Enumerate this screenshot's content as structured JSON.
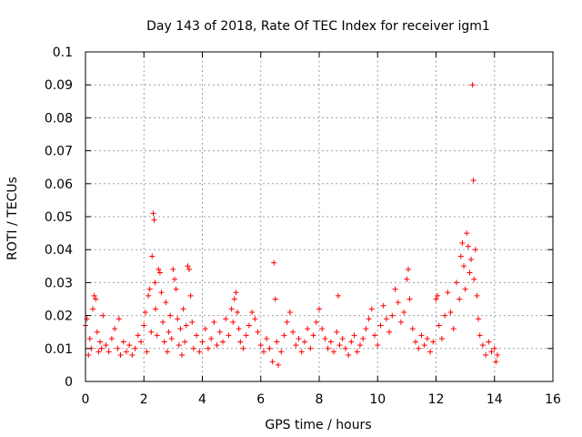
{
  "chart_data": {
    "type": "scatter",
    "title": "Day 143 of 2018, Rate Of TEC Index for receiver igm1",
    "xlabel": "GPS time / hours",
    "ylabel": "ROTI / TECUs",
    "xlim": [
      0,
      16
    ],
    "ylim": [
      0,
      0.1
    ],
    "grid": true,
    "marker": "plus",
    "color": "#ff0000",
    "x_ticks": [
      "0",
      "2",
      "4",
      "6",
      "8",
      "10",
      "12",
      "14",
      "16"
    ],
    "y_ticks": [
      "0",
      "0.01",
      "0.02",
      "0.03",
      "0.04",
      "0.05",
      "0.06",
      "0.07",
      "0.08",
      "0.09",
      "0.1"
    ],
    "series": [
      {
        "name": "ROTI",
        "points": [
          [
            0.0,
            0.017
          ],
          [
            0.05,
            0.019
          ],
          [
            0.1,
            0.008
          ],
          [
            0.15,
            0.013
          ],
          [
            0.2,
            0.01
          ],
          [
            0.25,
            0.022
          ],
          [
            0.3,
            0.026
          ],
          [
            0.35,
            0.025
          ],
          [
            0.4,
            0.015
          ],
          [
            0.45,
            0.009
          ],
          [
            0.5,
            0.012
          ],
          [
            0.55,
            0.01
          ],
          [
            0.6,
            0.02
          ],
          [
            0.7,
            0.011
          ],
          [
            0.8,
            0.009
          ],
          [
            0.9,
            0.013
          ],
          [
            1.0,
            0.016
          ],
          [
            1.1,
            0.01
          ],
          [
            1.15,
            0.019
          ],
          [
            1.2,
            0.008
          ],
          [
            1.3,
            0.012
          ],
          [
            1.4,
            0.009
          ],
          [
            1.5,
            0.011
          ],
          [
            1.6,
            0.008
          ],
          [
            1.7,
            0.01
          ],
          [
            1.8,
            0.014
          ],
          [
            1.9,
            0.012
          ],
          [
            2.0,
            0.017
          ],
          [
            2.05,
            0.021
          ],
          [
            2.1,
            0.009
          ],
          [
            2.15,
            0.026
          ],
          [
            2.2,
            0.028
          ],
          [
            2.25,
            0.015
          ],
          [
            2.28,
            0.038
          ],
          [
            2.32,
            0.051
          ],
          [
            2.35,
            0.049
          ],
          [
            2.38,
            0.03
          ],
          [
            2.4,
            0.022
          ],
          [
            2.45,
            0.014
          ],
          [
            2.5,
            0.034
          ],
          [
            2.55,
            0.033
          ],
          [
            2.6,
            0.027
          ],
          [
            2.65,
            0.018
          ],
          [
            2.7,
            0.012
          ],
          [
            2.75,
            0.024
          ],
          [
            2.8,
            0.009
          ],
          [
            2.85,
            0.015
          ],
          [
            2.9,
            0.02
          ],
          [
            2.95,
            0.013
          ],
          [
            3.0,
            0.034
          ],
          [
            3.05,
            0.031
          ],
          [
            3.1,
            0.028
          ],
          [
            3.15,
            0.019
          ],
          [
            3.2,
            0.011
          ],
          [
            3.25,
            0.016
          ],
          [
            3.3,
            0.008
          ],
          [
            3.35,
            0.022
          ],
          [
            3.4,
            0.012
          ],
          [
            3.45,
            0.017
          ],
          [
            3.5,
            0.035
          ],
          [
            3.55,
            0.034
          ],
          [
            3.6,
            0.026
          ],
          [
            3.65,
            0.018
          ],
          [
            3.7,
            0.01
          ],
          [
            3.8,
            0.014
          ],
          [
            3.9,
            0.009
          ],
          [
            4.0,
            0.012
          ],
          [
            4.1,
            0.016
          ],
          [
            4.2,
            0.01
          ],
          [
            4.3,
            0.013
          ],
          [
            4.4,
            0.018
          ],
          [
            4.5,
            0.011
          ],
          [
            4.6,
            0.015
          ],
          [
            4.7,
            0.012
          ],
          [
            4.8,
            0.019
          ],
          [
            4.9,
            0.014
          ],
          [
            5.0,
            0.022
          ],
          [
            5.05,
            0.018
          ],
          [
            5.1,
            0.025
          ],
          [
            5.15,
            0.027
          ],
          [
            5.2,
            0.021
          ],
          [
            5.25,
            0.016
          ],
          [
            5.3,
            0.012
          ],
          [
            5.4,
            0.01
          ],
          [
            5.5,
            0.014
          ],
          [
            5.6,
            0.017
          ],
          [
            5.7,
            0.021
          ],
          [
            5.8,
            0.019
          ],
          [
            5.9,
            0.015
          ],
          [
            6.0,
            0.011
          ],
          [
            6.1,
            0.009
          ],
          [
            6.2,
            0.013
          ],
          [
            6.3,
            0.01
          ],
          [
            6.4,
            0.006
          ],
          [
            6.45,
            0.036
          ],
          [
            6.5,
            0.025
          ],
          [
            6.55,
            0.012
          ],
          [
            6.6,
            0.005
          ],
          [
            6.7,
            0.009
          ],
          [
            6.8,
            0.014
          ],
          [
            6.9,
            0.018
          ],
          [
            7.0,
            0.021
          ],
          [
            7.1,
            0.015
          ],
          [
            7.2,
            0.011
          ],
          [
            7.3,
            0.013
          ],
          [
            7.4,
            0.009
          ],
          [
            7.5,
            0.012
          ],
          [
            7.6,
            0.016
          ],
          [
            7.7,
            0.01
          ],
          [
            7.8,
            0.014
          ],
          [
            7.9,
            0.018
          ],
          [
            8.0,
            0.022
          ],
          [
            8.1,
            0.016
          ],
          [
            8.2,
            0.013
          ],
          [
            8.3,
            0.01
          ],
          [
            8.4,
            0.012
          ],
          [
            8.5,
            0.009
          ],
          [
            8.6,
            0.015
          ],
          [
            8.65,
            0.026
          ],
          [
            8.7,
            0.011
          ],
          [
            8.8,
            0.013
          ],
          [
            8.9,
            0.01
          ],
          [
            9.0,
            0.008
          ],
          [
            9.1,
            0.012
          ],
          [
            9.2,
            0.014
          ],
          [
            9.3,
            0.009
          ],
          [
            9.4,
            0.011
          ],
          [
            9.5,
            0.013
          ],
          [
            9.6,
            0.016
          ],
          [
            9.7,
            0.019
          ],
          [
            9.8,
            0.022
          ],
          [
            9.9,
            0.014
          ],
          [
            10.0,
            0.011
          ],
          [
            10.1,
            0.017
          ],
          [
            10.2,
            0.023
          ],
          [
            10.3,
            0.019
          ],
          [
            10.4,
            0.015
          ],
          [
            10.5,
            0.02
          ],
          [
            10.6,
            0.028
          ],
          [
            10.7,
            0.024
          ],
          [
            10.8,
            0.018
          ],
          [
            10.9,
            0.021
          ],
          [
            11.0,
            0.031
          ],
          [
            11.05,
            0.034
          ],
          [
            11.1,
            0.025
          ],
          [
            11.2,
            0.016
          ],
          [
            11.3,
            0.012
          ],
          [
            11.4,
            0.01
          ],
          [
            11.5,
            0.014
          ],
          [
            11.6,
            0.011
          ],
          [
            11.7,
            0.013
          ],
          [
            11.8,
            0.009
          ],
          [
            11.9,
            0.012
          ],
          [
            12.0,
            0.025
          ],
          [
            12.05,
            0.026
          ],
          [
            12.1,
            0.017
          ],
          [
            12.2,
            0.013
          ],
          [
            12.3,
            0.02
          ],
          [
            12.4,
            0.027
          ],
          [
            12.5,
            0.021
          ],
          [
            12.6,
            0.016
          ],
          [
            12.7,
            0.03
          ],
          [
            12.8,
            0.025
          ],
          [
            12.85,
            0.038
          ],
          [
            12.9,
            0.042
          ],
          [
            12.95,
            0.035
          ],
          [
            13.0,
            0.028
          ],
          [
            13.05,
            0.045
          ],
          [
            13.1,
            0.041
          ],
          [
            13.15,
            0.033
          ],
          [
            13.2,
            0.037
          ],
          [
            13.25,
            0.09
          ],
          [
            13.28,
            0.061
          ],
          [
            13.3,
            0.031
          ],
          [
            13.35,
            0.04
          ],
          [
            13.4,
            0.026
          ],
          [
            13.45,
            0.019
          ],
          [
            13.5,
            0.014
          ],
          [
            13.6,
            0.011
          ],
          [
            13.7,
            0.008
          ],
          [
            13.8,
            0.012
          ],
          [
            13.9,
            0.009
          ],
          [
            14.0,
            0.01
          ],
          [
            14.05,
            0.006
          ],
          [
            14.1,
            0.008
          ]
        ]
      }
    ]
  }
}
